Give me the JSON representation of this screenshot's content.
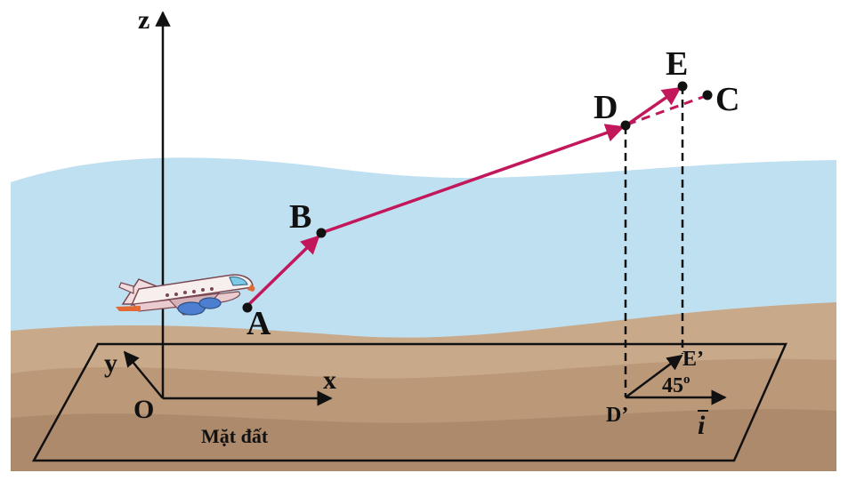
{
  "labels": {
    "z": "z",
    "x": "x",
    "y": "y",
    "O": "O",
    "A": "A",
    "B": "B",
    "C": "C",
    "D": "D",
    "E": "E",
    "D_prime": "D’",
    "E_prime": "E’",
    "angle": "45",
    "angle_unit": "o",
    "i_vector": "i",
    "ground": "Mặt đất"
  },
  "colors": {
    "sky": "#bfe0f1",
    "land_light": "#c8a98a",
    "land_mid": "#bb9878",
    "land_dark": "#ad8a6b",
    "path": "#c2185b",
    "lines": "#111111"
  },
  "icons": {
    "airplane": "airplane-icon"
  }
}
